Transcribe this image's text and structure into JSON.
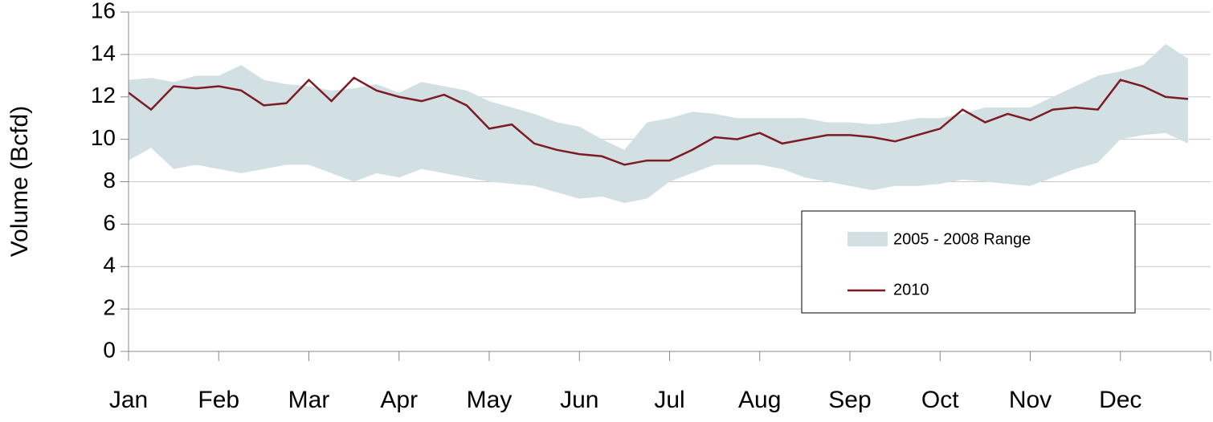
{
  "chart_data": {
    "type": "range-line",
    "y_label": "Volume (Bcfd)",
    "categories": [
      "Jan",
      null,
      null,
      null,
      "Feb",
      null,
      null,
      null,
      "Mar",
      null,
      null,
      null,
      "Apr",
      null,
      null,
      null,
      "May",
      null,
      null,
      null,
      "Jun",
      null,
      null,
      null,
      "Jul",
      null,
      null,
      null,
      "Aug",
      null,
      null,
      null,
      "Sep",
      null,
      null,
      null,
      "Oct",
      null,
      null,
      null,
      "Nov",
      null,
      null,
      null,
      "Dec",
      null,
      null,
      null
    ],
    "series": [
      {
        "name": "2005 - 2008 Range",
        "color": "#d3e0e3",
        "high": [
          12.8,
          12.9,
          12.7,
          13.0,
          13.0,
          13.5,
          12.8,
          12.6,
          12.5,
          12.3,
          12.4,
          12.6,
          12.2,
          12.7,
          12.5,
          12.3,
          11.8,
          11.5,
          11.2,
          10.8,
          10.6,
          10.0,
          9.5,
          10.8,
          11.0,
          11.3,
          11.2,
          11.0,
          11.0,
          11.0,
          11.0,
          10.8,
          10.8,
          10.7,
          10.8,
          11.0,
          11.0,
          11.2,
          11.5,
          11.5,
          11.5,
          12.0,
          12.5,
          13.0,
          13.2,
          13.5,
          14.5,
          13.8
        ],
        "low": [
          9.0,
          9.6,
          8.6,
          8.8,
          8.6,
          8.4,
          8.6,
          8.8,
          8.8,
          8.4,
          8.0,
          8.4,
          8.2,
          8.6,
          8.4,
          8.2,
          8.0,
          7.9,
          7.8,
          7.5,
          7.2,
          7.3,
          7.0,
          7.2,
          8.0,
          8.4,
          8.8,
          8.8,
          8.8,
          8.6,
          8.2,
          8.0,
          7.8,
          7.6,
          7.8,
          7.8,
          7.9,
          8.1,
          8.0,
          7.9,
          7.8,
          8.2,
          8.6,
          8.9,
          10.0,
          10.2,
          10.3,
          9.8
        ]
      },
      {
        "name": "2010",
        "color": "#7b1c24",
        "values": [
          12.2,
          11.4,
          12.5,
          12.4,
          12.5,
          12.3,
          11.6,
          11.7,
          12.8,
          11.8,
          12.9,
          12.3,
          12.0,
          11.8,
          12.1,
          11.6,
          10.5,
          10.7,
          9.8,
          9.5,
          9.3,
          9.2,
          8.8,
          9.0,
          9.0,
          9.5,
          10.1,
          10.0,
          10.3,
          9.8,
          10.0,
          10.2,
          10.2,
          10.1,
          9.9,
          10.2,
          10.5,
          11.4,
          10.8,
          11.2,
          10.9,
          11.4,
          11.5,
          11.4,
          12.8,
          12.5,
          12.0,
          11.9
        ]
      }
    ],
    "ylim": [
      0,
      16
    ],
    "yticks": [
      0,
      2,
      4,
      6,
      8,
      10,
      12,
      14,
      16
    ],
    "grid": true
  }
}
